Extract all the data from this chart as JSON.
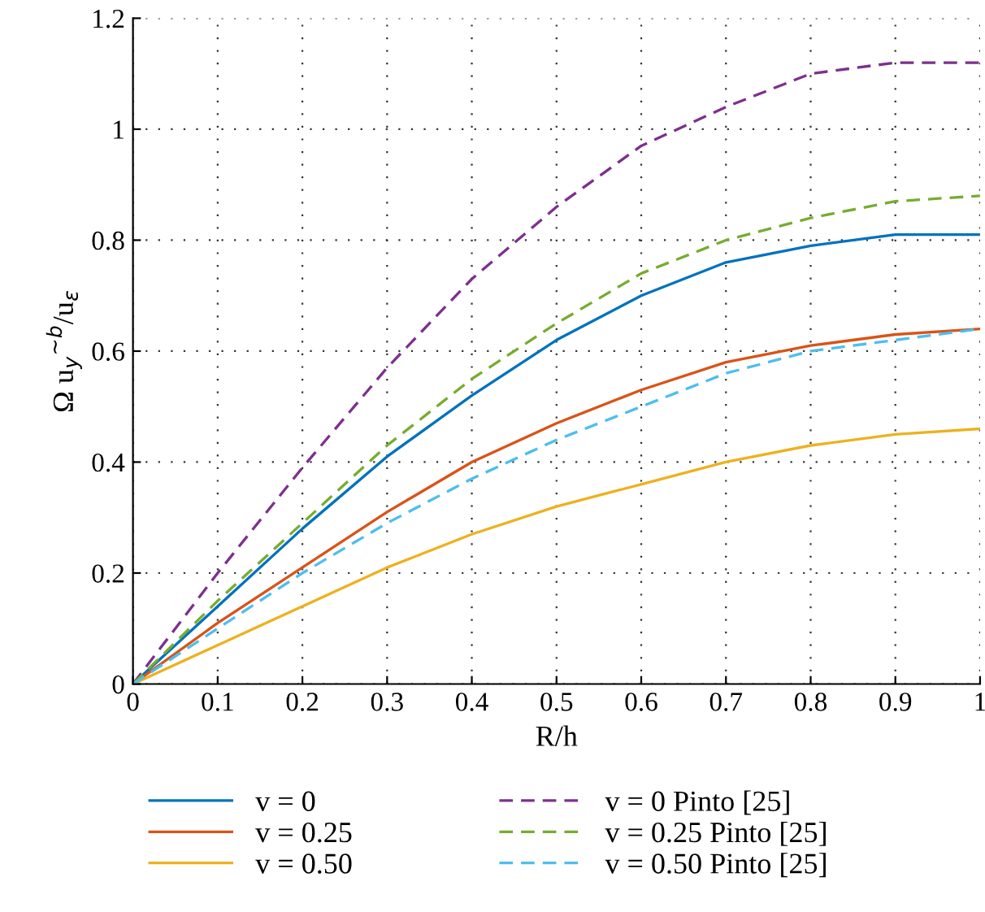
{
  "chart_data": {
    "type": "line",
    "xlabel": "R/h",
    "ylabel": "Ω u$_{y}$$^{∼b}$/u$_{ε}$",
    "x": [
      0,
      0.1,
      0.2,
      0.3,
      0.4,
      0.5,
      0.6,
      0.7,
      0.8,
      0.9,
      1
    ],
    "series": [
      {
        "name": "v = 0",
        "color": "#0072bd",
        "line_style": "solid",
        "values": [
          0,
          0.14,
          0.28,
          0.41,
          0.52,
          0.62,
          0.7,
          0.76,
          0.79,
          0.81,
          0.81
        ]
      },
      {
        "name": "v = 0.25",
        "color": "#d95319",
        "line_style": "solid",
        "values": [
          0,
          0.11,
          0.21,
          0.31,
          0.4,
          0.47,
          0.53,
          0.58,
          0.61,
          0.63,
          0.64
        ]
      },
      {
        "name": "v = 0.50",
        "color": "#edb120",
        "line_style": "solid",
        "values": [
          0,
          0.07,
          0.14,
          0.21,
          0.27,
          0.32,
          0.36,
          0.4,
          0.43,
          0.45,
          0.46
        ]
      },
      {
        "name": "v = 0 Pinto [25]",
        "color": "#7e2f8e",
        "line_style": "dashed",
        "values": [
          0,
          0.2,
          0.39,
          0.57,
          0.73,
          0.86,
          0.97,
          1.04,
          1.1,
          1.12,
          1.12
        ]
      },
      {
        "name": "v = 0.25 Pinto [25]",
        "color": "#77ac30",
        "line_style": "dashed",
        "values": [
          0,
          0.15,
          0.29,
          0.43,
          0.55,
          0.65,
          0.74,
          0.8,
          0.84,
          0.87,
          0.88
        ]
      },
      {
        "name": "v = 0.50 Pinto [25]",
        "color": "#4dbeee",
        "line_style": "dashed",
        "values": [
          0,
          0.1,
          0.2,
          0.29,
          0.37,
          0.44,
          0.5,
          0.56,
          0.6,
          0.62,
          0.64
        ]
      }
    ],
    "xlim": [
      0,
      1
    ],
    "xticks": [
      0,
      0.1,
      0.2,
      0.3,
      0.4,
      0.5,
      0.6,
      0.7,
      0.8,
      0.9,
      1
    ],
    "ylim": [
      0,
      1.2
    ],
    "yticks": [
      0,
      0.2,
      0.4,
      0.6,
      0.8,
      1,
      1.2
    ],
    "grid": true,
    "legend": "bottom",
    "marker": "none"
  }
}
